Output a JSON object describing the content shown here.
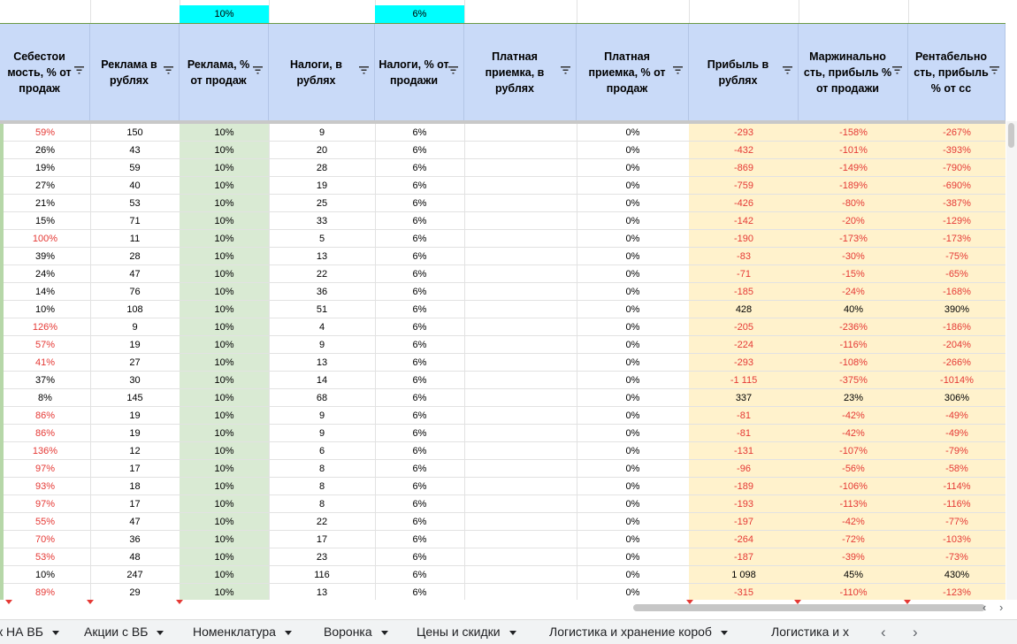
{
  "colors": {
    "header_bg": "#c9daf8",
    "green_fill": "#d9ead3",
    "yellow_fill": "#fff2cc",
    "negative": "#e53935",
    "cyan": "#00ffff"
  },
  "params": {
    "ads_pct": "10%",
    "tax_pct": "6%"
  },
  "headers": [
    "Себестои мость, % от продаж",
    "Реклама в рублях",
    "Реклама, % от продаж",
    "Налоги, в рублях",
    "Налоги, % от продажи",
    "Платная приемка, в рублях",
    "Платная приемка, % от продаж",
    "Прибыль в рублях",
    "Маржинально сть, прибыль % от продажи",
    "Рентабельно сть, прибыль % от сс"
  ],
  "rows": [
    [
      "59%",
      "150",
      "10%",
      "9",
      "6%",
      "",
      "0%",
      "-293",
      "-158%",
      "-267%"
    ],
    [
      "26%",
      "43",
      "10%",
      "20",
      "6%",
      "",
      "0%",
      "-432",
      "-101%",
      "-393%"
    ],
    [
      "19%",
      "59",
      "10%",
      "28",
      "6%",
      "",
      "0%",
      "-869",
      "-149%",
      "-790%"
    ],
    [
      "27%",
      "40",
      "10%",
      "19",
      "6%",
      "",
      "0%",
      "-759",
      "-189%",
      "-690%"
    ],
    [
      "21%",
      "53",
      "10%",
      "25",
      "6%",
      "",
      "0%",
      "-426",
      "-80%",
      "-387%"
    ],
    [
      "15%",
      "71",
      "10%",
      "33",
      "6%",
      "",
      "0%",
      "-142",
      "-20%",
      "-129%"
    ],
    [
      "100%",
      "11",
      "10%",
      "5",
      "6%",
      "",
      "0%",
      "-190",
      "-173%",
      "-173%"
    ],
    [
      "39%",
      "28",
      "10%",
      "13",
      "6%",
      "",
      "0%",
      "-83",
      "-30%",
      "-75%"
    ],
    [
      "24%",
      "47",
      "10%",
      "22",
      "6%",
      "",
      "0%",
      "-71",
      "-15%",
      "-65%"
    ],
    [
      "14%",
      "76",
      "10%",
      "36",
      "6%",
      "",
      "0%",
      "-185",
      "-24%",
      "-168%"
    ],
    [
      "10%",
      "108",
      "10%",
      "51",
      "6%",
      "",
      "0%",
      "428",
      "40%",
      "390%"
    ],
    [
      "126%",
      "9",
      "10%",
      "4",
      "6%",
      "",
      "0%",
      "-205",
      "-236%",
      "-186%"
    ],
    [
      "57%",
      "19",
      "10%",
      "9",
      "6%",
      "",
      "0%",
      "-224",
      "-116%",
      "-204%"
    ],
    [
      "41%",
      "27",
      "10%",
      "13",
      "6%",
      "",
      "0%",
      "-293",
      "-108%",
      "-266%"
    ],
    [
      "37%",
      "30",
      "10%",
      "14",
      "6%",
      "",
      "0%",
      "-1 115",
      "-375%",
      "-1014%"
    ],
    [
      "8%",
      "145",
      "10%",
      "68",
      "6%",
      "",
      "0%",
      "337",
      "23%",
      "306%"
    ],
    [
      "86%",
      "19",
      "10%",
      "9",
      "6%",
      "",
      "0%",
      "-81",
      "-42%",
      "-49%"
    ],
    [
      "86%",
      "19",
      "10%",
      "9",
      "6%",
      "",
      "0%",
      "-81",
      "-42%",
      "-49%"
    ],
    [
      "136%",
      "12",
      "10%",
      "6",
      "6%",
      "",
      "0%",
      "-131",
      "-107%",
      "-79%"
    ],
    [
      "97%",
      "17",
      "10%",
      "8",
      "6%",
      "",
      "0%",
      "-96",
      "-56%",
      "-58%"
    ],
    [
      "93%",
      "18",
      "10%",
      "8",
      "6%",
      "",
      "0%",
      "-189",
      "-106%",
      "-114%"
    ],
    [
      "97%",
      "17",
      "10%",
      "8",
      "6%",
      "",
      "0%",
      "-193",
      "-113%",
      "-116%"
    ],
    [
      "55%",
      "47",
      "10%",
      "22",
      "6%",
      "",
      "0%",
      "-197",
      "-42%",
      "-77%"
    ],
    [
      "70%",
      "36",
      "10%",
      "17",
      "6%",
      "",
      "0%",
      "-264",
      "-72%",
      "-103%"
    ],
    [
      "53%",
      "48",
      "10%",
      "23",
      "6%",
      "",
      "0%",
      "-187",
      "-39%",
      "-73%"
    ],
    [
      "10%",
      "247",
      "10%",
      "116",
      "6%",
      "",
      "0%",
      "1 098",
      "45%",
      "430%"
    ],
    [
      "89%",
      "29",
      "10%",
      "13",
      "6%",
      "",
      "0%",
      "-315",
      "-110%",
      "-123%"
    ]
  ],
  "tabs": [
    {
      "label": "к НА ВБ"
    },
    {
      "label": "Акции с ВБ"
    },
    {
      "label": "Номенклатура"
    },
    {
      "label": "Воронка"
    },
    {
      "label": "Цены и скидки"
    },
    {
      "label": "Логистика и хранение короб"
    },
    {
      "label": "Логистика и х"
    }
  ],
  "nav_icons": [
    "chevron-left-icon",
    "chevron-right-icon"
  ]
}
